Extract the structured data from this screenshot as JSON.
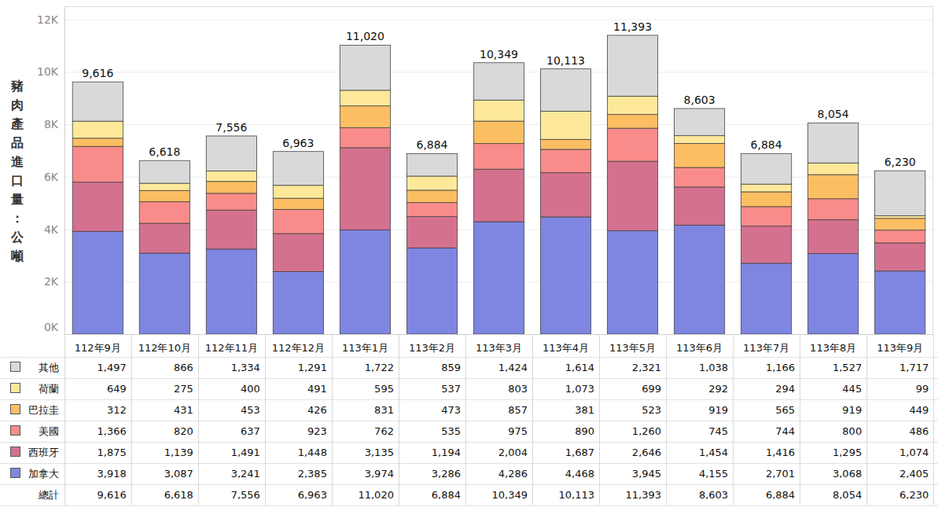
{
  "chart_data": {
    "type": "bar",
    "stacked": true,
    "grid": true,
    "y_label": "豬肉產品進口量：公噸",
    "categories": [
      "112年9月",
      "112年10月",
      "112年11月",
      "112年12月",
      "113年1月",
      "113年2月",
      "113年3月",
      "113年4月",
      "113年5月",
      "113年6月",
      "113年7月",
      "113年8月",
      "113年9月"
    ],
    "ylim": [
      0,
      12500
    ],
    "yticks": [
      {
        "value": 0,
        "label": "0K"
      },
      {
        "value": 2000,
        "label": "2K"
      },
      {
        "value": 4000,
        "label": "4K"
      },
      {
        "value": 6000,
        "label": "6K"
      },
      {
        "value": 8000,
        "label": "8K"
      },
      {
        "value": 10000,
        "label": "10K"
      },
      {
        "value": 12000,
        "label": "12K"
      }
    ],
    "series": [
      {
        "name": "加拿大",
        "color": "#7f86e2",
        "values": [
          3918,
          3087,
          3241,
          2385,
          3974,
          3286,
          4286,
          4468,
          3945,
          4155,
          2701,
          3068,
          2405
        ],
        "value_labels": [
          "3,918",
          "3,087",
          "3,241",
          "2,385",
          "3,974",
          "3,286",
          "4,286",
          "4,468",
          "3,945",
          "4,155",
          "2,701",
          "3,068",
          "2,405"
        ]
      },
      {
        "name": "西班牙",
        "color": "#d4718f",
        "values": [
          1875,
          1139,
          1491,
          1448,
          3135,
          1194,
          2004,
          1687,
          2646,
          1454,
          1416,
          1295,
          1074
        ],
        "value_labels": [
          "1,875",
          "1,139",
          "1,491",
          "1,448",
          "3,135",
          "1,194",
          "2,004",
          "1,687",
          "2,646",
          "1,454",
          "1,416",
          "1,295",
          "1,074"
        ]
      },
      {
        "name": "美國",
        "color": "#f98c8a",
        "values": [
          1366,
          820,
          637,
          923,
          762,
          535,
          975,
          890,
          1260,
          745,
          744,
          800,
          486
        ],
        "value_labels": [
          "1,366",
          "820",
          "637",
          "923",
          "762",
          "535",
          "975",
          "890",
          "1,260",
          "745",
          "744",
          "800",
          "486"
        ]
      },
      {
        "name": "巴拉圭",
        "color": "#fbbe62",
        "values": [
          312,
          431,
          453,
          426,
          831,
          473,
          857,
          381,
          523,
          919,
          565,
          919,
          449
        ],
        "value_labels": [
          "312",
          "431",
          "453",
          "426",
          "831",
          "473",
          "857",
          "381",
          "523",
          "919",
          "565",
          "919",
          "449"
        ]
      },
      {
        "name": "荷蘭",
        "color": "#fee89a",
        "values": [
          649,
          275,
          400,
          491,
          595,
          537,
          803,
          1073,
          699,
          292,
          294,
          445,
          99
        ],
        "value_labels": [
          "649",
          "275",
          "400",
          "491",
          "595",
          "537",
          "803",
          "1,073",
          "699",
          "292",
          "294",
          "445",
          "99"
        ]
      },
      {
        "name": "其他",
        "color": "#d9d9d9",
        "values": [
          1497,
          866,
          1334,
          1291,
          1722,
          859,
          1424,
          1614,
          2321,
          1038,
          1166,
          1527,
          1717
        ],
        "value_labels": [
          "1,497",
          "866",
          "1,334",
          "1,291",
          "1,722",
          "859",
          "1,424",
          "1,614",
          "2,321",
          "1,038",
          "1,166",
          "1,527",
          "1,717"
        ]
      }
    ],
    "totals": {
      "name": "總計",
      "values": [
        9616,
        6618,
        7556,
        6963,
        11020,
        6884,
        10349,
        10113,
        11393,
        8603,
        6884,
        8054,
        6230
      ],
      "value_labels": [
        "9,616",
        "6,618",
        "7,556",
        "6,963",
        "11,020",
        "6,884",
        "10,349",
        "10,113",
        "11,393",
        "8,603",
        "6,884",
        "8,054",
        "6,230"
      ]
    }
  }
}
